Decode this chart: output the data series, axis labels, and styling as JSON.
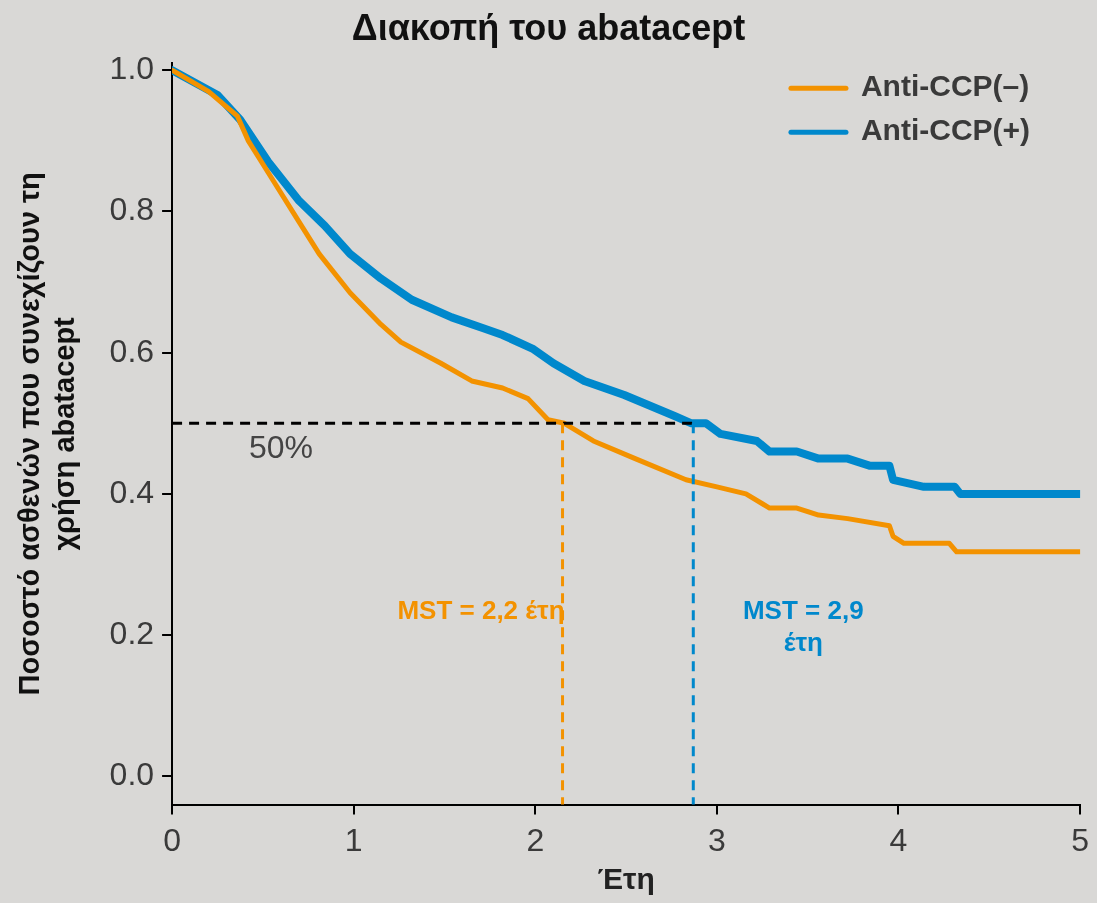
{
  "chart_data": {
    "type": "line",
    "title": "Διακοπή του abatacept",
    "xlabel": "Έτη",
    "ylabel": "Ποσοστό ασθενών που συνεχίζουν τη\nχρήση abatacept",
    "xlim": [
      0,
      5
    ],
    "ylim": [
      -0.04,
      1.01
    ],
    "xticks": [
      0,
      1,
      2,
      3,
      4,
      5
    ],
    "yticks": [
      {
        "value": 0,
        "label": "0.0"
      },
      {
        "value": 0.2,
        "label": "0.2"
      },
      {
        "value": 0.4,
        "label": "0.4"
      },
      {
        "value": 0.6,
        "label": "0.6"
      },
      {
        "value": 0.8,
        "label": "0.8"
      },
      {
        "value": 1,
        "label": "1.0"
      }
    ],
    "grid": false,
    "legend": "top right",
    "marker": "none",
    "line_style": "solid",
    "series": [
      {
        "name": "Anti-CCP(–)",
        "color": "#f39200",
        "x": [
          0,
          0.2,
          0.36,
          0.42,
          0.59,
          0.7,
          0.81,
          0.98,
          1.15,
          1.26,
          1.48,
          1.65,
          1.82,
          1.96,
          2.07,
          2.16,
          2.32,
          2.55,
          2.83,
          3.0,
          3.16,
          3.29,
          3.44,
          3.56,
          3.72,
          3.95,
          3.97,
          4.03,
          4.28,
          4.32,
          5
        ],
        "values": [
          1.0,
          0.97,
          0.935,
          0.9,
          0.83,
          0.785,
          0.74,
          0.685,
          0.64,
          0.615,
          0.585,
          0.56,
          0.55,
          0.535,
          0.505,
          0.5,
          0.475,
          0.45,
          0.42,
          0.41,
          0.4,
          0.38,
          0.38,
          0.37,
          0.365,
          0.355,
          0.34,
          0.33,
          0.33,
          0.318,
          0.318
        ]
      },
      {
        "name": "Anti-CCP(+)",
        "color": "#0088cc",
        "x": [
          0,
          0.25,
          0.375,
          0.53,
          0.7,
          0.84,
          0.98,
          1.15,
          1.32,
          1.54,
          1.71,
          1.82,
          1.99,
          2.1,
          2.27,
          2.49,
          2.77,
          2.86,
          2.94,
          3.02,
          3.22,
          3.29,
          3.44,
          3.56,
          3.72,
          3.84,
          3.95,
          3.97,
          4.14,
          4.31,
          4.34,
          5
        ],
        "values": [
          1.0,
          0.965,
          0.93,
          0.87,
          0.815,
          0.78,
          0.74,
          0.705,
          0.675,
          0.65,
          0.635,
          0.625,
          0.605,
          0.585,
          0.56,
          0.54,
          0.51,
          0.5,
          0.5,
          0.485,
          0.475,
          0.46,
          0.46,
          0.45,
          0.45,
          0.44,
          0.44,
          0.42,
          0.41,
          0.41,
          0.4,
          0.4
        ]
      }
    ],
    "ref_lines": [
      {
        "axis": "y",
        "value": 0.5,
        "label": "50%",
        "color": "#000000",
        "line_style": "dashed"
      },
      {
        "axis": "x",
        "value": 2.15,
        "label": "MST = 2,2 έτη",
        "color": "#f39200",
        "line_style": "dashed"
      },
      {
        "axis": "x",
        "value": 2.87,
        "label": "MST = 2,9 έτη",
        "color": "#0088cc",
        "line_style": "dashed"
      }
    ]
  }
}
